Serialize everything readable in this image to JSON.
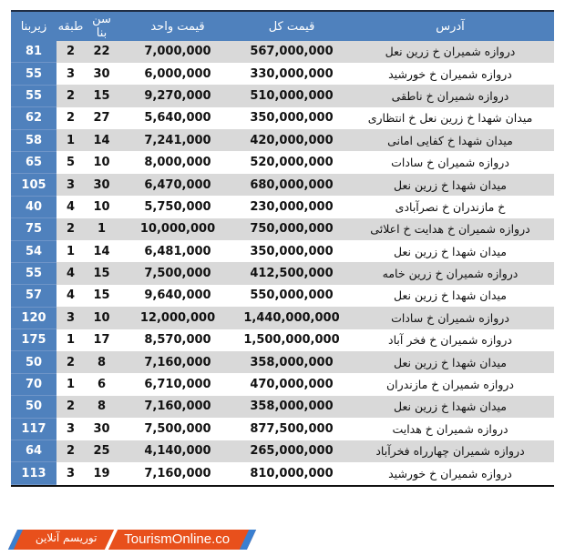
{
  "headers": {
    "address": "آدرس",
    "total_price": "قیمت کل",
    "unit_price": "قیمت واحد",
    "age": "سن بنا",
    "floor": "طبقه",
    "area": "زیربنا"
  },
  "rows": [
    {
      "address": "دروازه شمیران خ زرین نعل",
      "total": "567,000,000",
      "unit": "7,000,000",
      "age": "22",
      "floor": "2",
      "area": "81"
    },
    {
      "address": "دروازه شمیران خ خورشید",
      "total": "330,000,000",
      "unit": "6,000,000",
      "age": "30",
      "floor": "3",
      "area": "55"
    },
    {
      "address": "دروازه شمیران خ ناطقی",
      "total": "510,000,000",
      "unit": "9,270,000",
      "age": "15",
      "floor": "2",
      "area": "55"
    },
    {
      "address": "میدان شهدا خ زرین نعل خ انتظاری",
      "total": "350,000,000",
      "unit": "5,640,000",
      "age": "27",
      "floor": "2",
      "area": "62"
    },
    {
      "address": "میدان شهدا خ کفایی امانی",
      "total": "420,000,000",
      "unit": "7,241,000",
      "age": "14",
      "floor": "1",
      "area": "58"
    },
    {
      "address": "دروازه شمیران خ سادات",
      "total": "520,000,000",
      "unit": "8,000,000",
      "age": "10",
      "floor": "5",
      "area": "65"
    },
    {
      "address": "میدان شهدا خ زرین نعل",
      "total": "680,000,000",
      "unit": "6,470,000",
      "age": "30",
      "floor": "3",
      "area": "105"
    },
    {
      "address": "خ مازندران خ نصرآبادی",
      "total": "230,000,000",
      "unit": "5,750,000",
      "age": "10",
      "floor": "4",
      "area": "40"
    },
    {
      "address": "دروازه شمیران خ هدایت خ اعلائی",
      "total": "750,000,000",
      "unit": "10,000,000",
      "age": "1",
      "floor": "2",
      "area": "75"
    },
    {
      "address": "میدان شهدا خ زرین نعل",
      "total": "350,000,000",
      "unit": "6,481,000",
      "age": "14",
      "floor": "1",
      "area": "54"
    },
    {
      "address": "دروازه شمیران خ زرین خامه",
      "total": "412,500,000",
      "unit": "7,500,000",
      "age": "15",
      "floor": "4",
      "area": "55"
    },
    {
      "address": "میدان شهدا خ زرین نعل",
      "total": "550,000,000",
      "unit": "9,640,000",
      "age": "15",
      "floor": "4",
      "area": "57"
    },
    {
      "address": "دروازه شمیران خ سادات",
      "total": "1,440,000,000",
      "unit": "12,000,000",
      "age": "10",
      "floor": "3",
      "area": "120"
    },
    {
      "address": "دروازه شمیران خ فخر آباد",
      "total": "1,500,000,000",
      "unit": "8,570,000",
      "age": "17",
      "floor": "1",
      "area": "175"
    },
    {
      "address": "میدان شهدا خ زرین نعل",
      "total": "358,000,000",
      "unit": "7,160,000",
      "age": "8",
      "floor": "2",
      "area": "50"
    },
    {
      "address": "دروازه شمیران خ مازندران",
      "total": "470,000,000",
      "unit": "6,710,000",
      "age": "6",
      "floor": "1",
      "area": "70"
    },
    {
      "address": "میدان شهدا خ زرین نعل",
      "total": "358,000,000",
      "unit": "7,160,000",
      "age": "8",
      "floor": "2",
      "area": "50"
    },
    {
      "address": "دروازه شمیران خ هدایت",
      "total": "877,500,000",
      "unit": "7,500,000",
      "age": "30",
      "floor": "3",
      "area": "117"
    },
    {
      "address": "دروازه شمیران چهارراه فخرآباد",
      "total": "265,000,000",
      "unit": "4,140,000",
      "age": "25",
      "floor": "2",
      "area": "64"
    },
    {
      "address": "دروازه شمیران خ خورشید",
      "total": "810,000,000",
      "unit": "7,160,000",
      "age": "19",
      "floor": "3",
      "area": "113"
    }
  ],
  "logo": {
    "fa": "توریسم آنلاین",
    "en": "TourismOnline.co"
  },
  "colors": {
    "header": "#4f81bd",
    "stripe": "#d9d9d9",
    "logo": "#e8501c"
  }
}
